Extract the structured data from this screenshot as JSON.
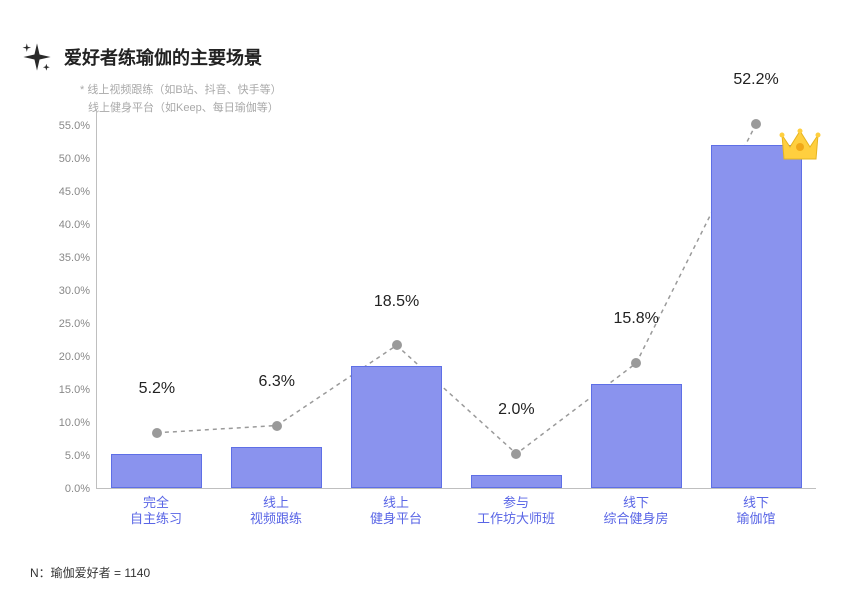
{
  "title": "爱好者练瑜伽的主要场景",
  "notes": {
    "line1": "*  线上视频跟练（如B站、抖音、快手等）",
    "line2": "线上健身平台（如Keep、每日瑜伽等）"
  },
  "footnote": "N：瑜伽爱好者 = 1140",
  "chart": {
    "type": "bar",
    "y_min": 0,
    "y_max": 57.5,
    "y_ticks": [
      0.0,
      5.0,
      10.0,
      15.0,
      20.0,
      25.0,
      30.0,
      35.0,
      40.0,
      45.0,
      50.0,
      55.0
    ],
    "y_tick_labels": [
      "0.0%",
      "5.0%",
      "10.0%",
      "15.0%",
      "20.0%",
      "25.0%",
      "30.0%",
      "35.0%",
      "40.0%",
      "45.0%",
      "50.0%",
      "55.0%"
    ],
    "bar_fill": "#8a93ee",
    "bar_border": "#5e6fe6",
    "marker_color": "#9a9a9a",
    "line_color": "#9a9a9a",
    "line_dash": "4,4",
    "x_label_color": "#5965e6",
    "value_label_color": "#222222",
    "value_label_fontsize": 16,
    "x_label_fontsize": 13,
    "marker_offset_percent": 3.2,
    "label_offset_percent": 8.5,
    "categories": [
      {
        "label_l1": "完全",
        "label_l2": "自主练习",
        "value": 5.2,
        "value_label": "5.2%",
        "crown": false
      },
      {
        "label_l1": "线上",
        "label_l2": "视频跟练",
        "value": 6.3,
        "value_label": "6.3%",
        "crown": false
      },
      {
        "label_l1": "线上",
        "label_l2": "健身平台",
        "value": 18.5,
        "value_label": "18.5%",
        "crown": false
      },
      {
        "label_l1": "参与",
        "label_l2": "工作坊大师班",
        "value": 2.0,
        "value_label": "2.0%",
        "crown": false
      },
      {
        "label_l1": "线下",
        "label_l2": "综合健身房",
        "value": 15.8,
        "value_label": "15.8%",
        "crown": false
      },
      {
        "label_l1": "线下",
        "label_l2": "瑜伽馆",
        "value": 52.2,
        "value_label": "52.2%",
        "crown": true
      }
    ]
  }
}
